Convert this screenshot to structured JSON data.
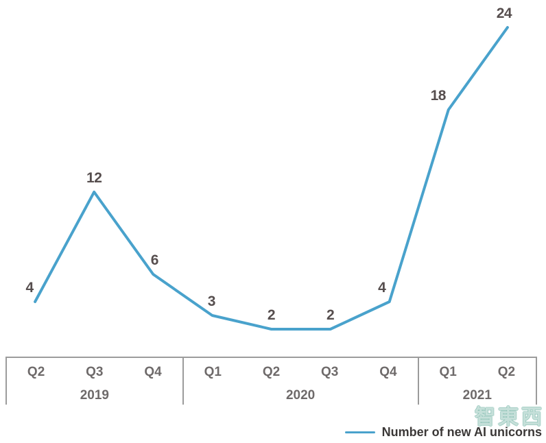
{
  "chart_data": {
    "type": "line",
    "title": "",
    "xlabel": "",
    "ylabel": "",
    "categories": [
      "Q2 2019",
      "Q3 2019",
      "Q4 2019",
      "Q1 2020",
      "Q2 2020",
      "Q3 2020",
      "Q4 2020",
      "Q1 2021",
      "Q2 2021"
    ],
    "series": [
      {
        "name": "Number of new AI unicorns",
        "values": [
          4,
          12,
          6,
          3,
          2,
          2,
          4,
          18,
          24
        ]
      }
    ],
    "data_labels": [
      "4",
      "12",
      "6",
      "3",
      "2",
      "2",
      "4",
      "18",
      "24"
    ],
    "ylim": [
      0,
      26
    ],
    "grid": false,
    "legend_position": "bottom-right",
    "line_color": "#49a2cc",
    "label_color": "#564e4e"
  },
  "axis": {
    "quarters": [
      "Q2",
      "Q3",
      "Q4",
      "Q1",
      "Q2",
      "Q3",
      "Q4",
      "Q1",
      "Q2"
    ],
    "groups": [
      {
        "year": "2019",
        "span": 3
      },
      {
        "year": "2020",
        "span": 4
      },
      {
        "year": "2021",
        "span": 2
      }
    ]
  },
  "legend": {
    "label": "Number of new AI unicorns",
    "line_color": "#49a2cc"
  },
  "watermark": {
    "text": "智東西",
    "color": "#7db9aa"
  }
}
